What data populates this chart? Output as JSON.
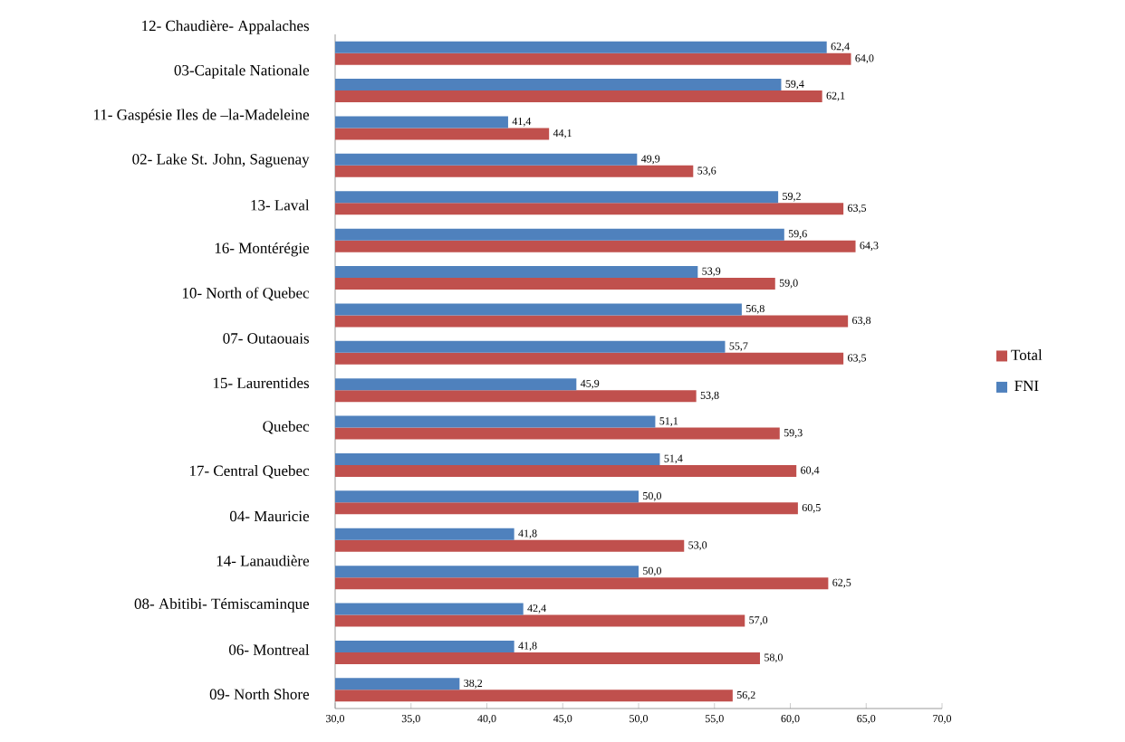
{
  "chart_data": {
    "type": "bar",
    "orientation": "horizontal",
    "categories": [
      null,
      null,
      null,
      null,
      null,
      null,
      null,
      null,
      null,
      null,
      null,
      null,
      null,
      null,
      null,
      null,
      null,
      null
    ],
    "annotations": [
      "12-  Chaudière- Appalaches",
      "03-Capitale Nationale",
      "11-  Gaspésie  Iles de –la-Madeleine",
      "02- Lake St. John, Saguenay",
      "13- Laval",
      "16- Montérégie",
      "10- North of Quebec",
      "07- Outaouais",
      "15- Laurentides",
      "Quebec",
      "17- Central Quebec",
      "04- Mauricie",
      "14- Lanaudière",
      "08- Abitibi- Témiscaminque",
      "06- Montreal",
      "09- North Shore"
    ],
    "series": [
      {
        "name": "Total",
        "color": "#c0504d",
        "values": [
          64.0,
          62.1,
          44.1,
          53.6,
          63.5,
          64.3,
          59.0,
          63.8,
          63.5,
          53.8,
          59.3,
          60.4,
          60.5,
          53.0,
          62.5,
          57.0,
          58.0,
          56.2
        ],
        "value_labels": [
          "64,0",
          "62,1",
          "44,1",
          "53,6",
          "63,5",
          "64,3",
          "59,0",
          "63,8",
          "63,5",
          "53,8",
          "59,3",
          "60,4",
          "60,5",
          "53,0",
          "62,5",
          "57,0",
          "58,0",
          "56,2"
        ]
      },
      {
        "name": "FNI",
        "color": "#4f81bd",
        "values": [
          62.4,
          59.4,
          41.4,
          49.9,
          59.2,
          59.6,
          53.9,
          56.8,
          55.7,
          45.9,
          51.1,
          51.4,
          50.0,
          41.8,
          50.0,
          42.4,
          41.8,
          38.2
        ],
        "value_labels": [
          "62,4",
          "59,4",
          "41,4",
          "49,9",
          "59,2",
          "59,6",
          "53,9",
          "56,8",
          "55,7",
          "45,9",
          "51,1",
          "51,4",
          "50,0",
          "41,8",
          "50,0",
          "42,4",
          "41,8",
          "38,2"
        ]
      }
    ],
    "xlim": [
      30,
      70
    ],
    "xticks": [
      {
        "value": 30,
        "label": "30,0"
      },
      {
        "value": 35,
        "label": "35,0"
      },
      {
        "value": 40,
        "label": "40,0"
      },
      {
        "value": 45,
        "label": "45,0"
      },
      {
        "value": 50,
        "label": "50,0"
      },
      {
        "value": 55,
        "label": "55,0"
      },
      {
        "value": 60,
        "label": "60,0"
      },
      {
        "value": 65,
        "label": "65,0"
      },
      {
        "value": 70,
        "label": "70,0"
      }
    ],
    "grid": false,
    "legend": "right"
  }
}
